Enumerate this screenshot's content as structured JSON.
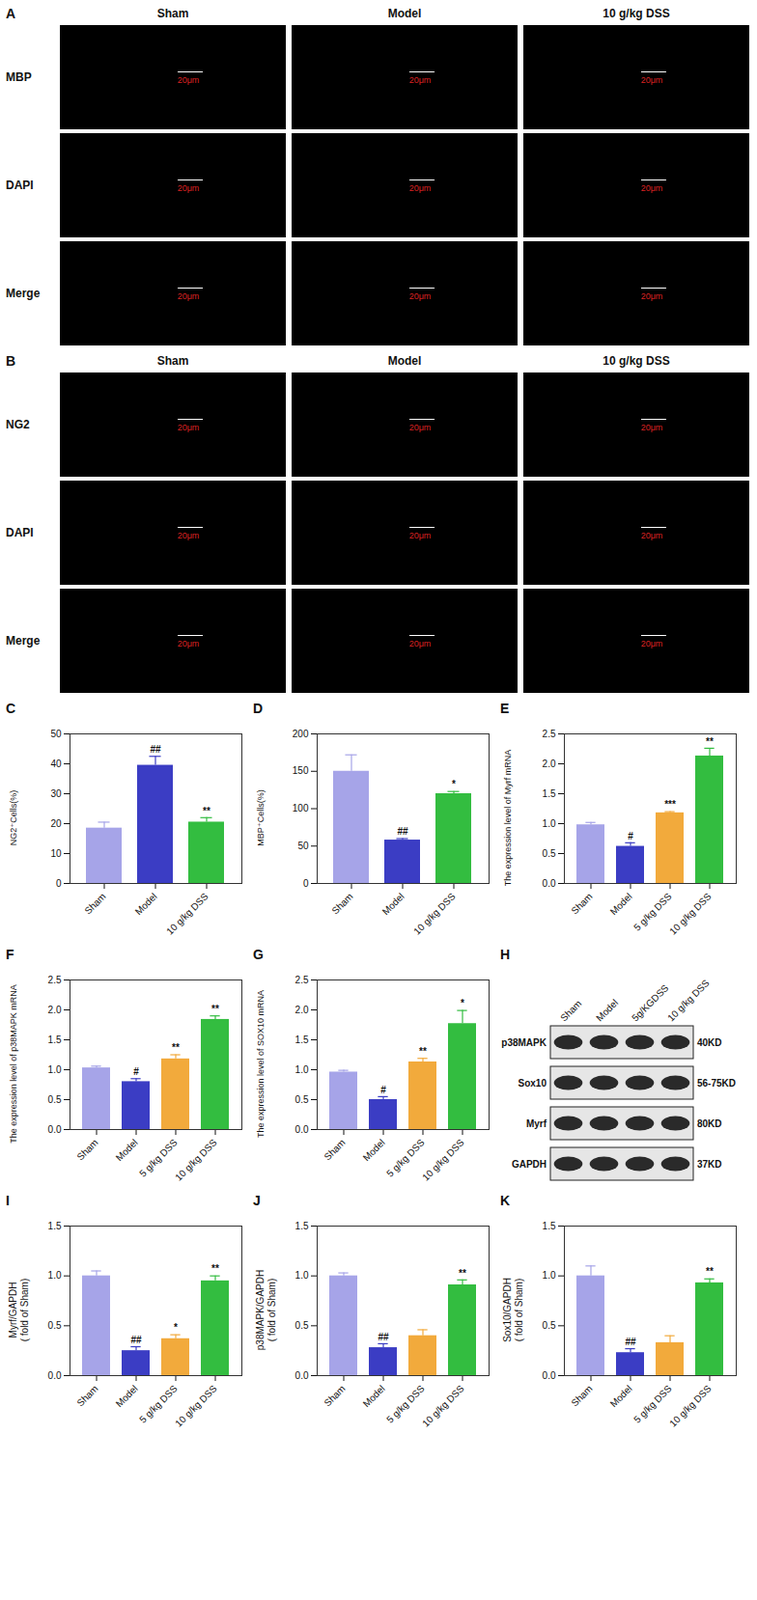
{
  "images": [
    {
      "panel": "A",
      "columns": [
        "Sham",
        "Model",
        "10 g/kg DSS"
      ],
      "rows": [
        "MBP",
        "DAPI",
        "Merge"
      ],
      "scale_bar": "20μm"
    },
    {
      "panel": "B",
      "columns": [
        "Sham",
        "Model",
        "10 g/kg DSS"
      ],
      "rows": [
        "NG2",
        "DAPI",
        "Merge"
      ],
      "scale_bar": "20μm"
    }
  ],
  "chart_data": [
    {
      "type": "bar",
      "panel": "C",
      "y_label": "NG2⁺Cells(%)",
      "categories": [
        "Sham",
        "Model",
        "10 g/kg DSS"
      ],
      "values": [
        18.5,
        39.5,
        20.5
      ],
      "errors": [
        2,
        3,
        1.5
      ],
      "annotations": [
        null,
        "##",
        "**"
      ],
      "colors": [
        "#a6a4e8",
        "#3b3dc4",
        "#33bd40"
      ],
      "ylim": [
        0,
        50
      ],
      "yticks": [
        0,
        10,
        20,
        30,
        40,
        50
      ]
    },
    {
      "type": "bar",
      "panel": "D",
      "y_label": "MBP⁺Cells(%)",
      "categories": [
        "Sham",
        "Model",
        "10 g/kg DSS"
      ],
      "values": [
        150,
        58,
        120
      ],
      "errors": [
        22,
        2,
        3
      ],
      "annotations": [
        null,
        "##",
        "*"
      ],
      "colors": [
        "#a6a4e8",
        "#3b3dc4",
        "#33bd40"
      ],
      "ylim": [
        0,
        200
      ],
      "yticks": [
        0,
        50,
        100,
        150,
        200
      ]
    },
    {
      "type": "bar",
      "panel": "E",
      "y_label": "The expression level of Myrf mRNA",
      "categories": [
        "Sham",
        "Model",
        "5 g/kg DSS",
        "10 g/kg DSS"
      ],
      "values": [
        0.98,
        0.62,
        1.18,
        2.13
      ],
      "errors": [
        0.04,
        0.06,
        0.02,
        0.13
      ],
      "annotations": [
        null,
        "#",
        "***",
        "**"
      ],
      "colors": [
        "#a6a4e8",
        "#3b3dc4",
        "#f2aa3c",
        "#33bd40"
      ],
      "ylim": [
        0,
        2.5
      ],
      "yticks": [
        {
          "value": 0,
          "label": "0.0"
        },
        0.5,
        {
          "value": 1,
          "label": "1.0"
        },
        1.5,
        {
          "value": 2,
          "label": "2.0"
        },
        2.5
      ]
    },
    {
      "type": "bar",
      "panel": "F",
      "y_label": "The expression level of p38MAPK mRNA",
      "categories": [
        "Sham",
        "Model",
        "5 g/kg DSS",
        "10 g/kg DSS"
      ],
      "values": [
        1.03,
        0.8,
        1.18,
        1.84
      ],
      "errors": [
        0.03,
        0.05,
        0.07,
        0.06
      ],
      "annotations": [
        null,
        "#",
        "**",
        "**"
      ],
      "colors": [
        "#a6a4e8",
        "#3b3dc4",
        "#f2aa3c",
        "#33bd40"
      ],
      "ylim": [
        0,
        2.5
      ],
      "yticks": [
        {
          "value": 0,
          "label": "0.0"
        },
        0.5,
        {
          "value": 1,
          "label": "1.0"
        },
        1.5,
        {
          "value": 2,
          "label": "2.0"
        },
        2.5
      ]
    },
    {
      "type": "bar",
      "panel": "G",
      "y_label": "The expression level of SOX10 mRNA",
      "categories": [
        "Sham",
        "Model",
        "5 g/kg DSS",
        "10 g/kg DSS"
      ],
      "values": [
        0.96,
        0.5,
        1.13,
        1.77
      ],
      "errors": [
        0.03,
        0.05,
        0.06,
        0.22
      ],
      "annotations": [
        null,
        "#",
        "**",
        "*"
      ],
      "colors": [
        "#a6a4e8",
        "#3b3dc4",
        "#f2aa3c",
        "#33bd40"
      ],
      "ylim": [
        0,
        2.5
      ],
      "yticks": [
        {
          "value": 0,
          "label": "0.0"
        },
        0.5,
        {
          "value": 1,
          "label": "1.0"
        },
        1.5,
        {
          "value": 2,
          "label": "2.0"
        },
        2.5
      ]
    },
    {
      "type": "blot",
      "panel": "H",
      "lanes": [
        "Sham",
        "Model",
        "5g/KGDSS",
        "10 g/kg DSS"
      ],
      "bands": [
        {
          "name": "p38MAPK",
          "size": "40KD"
        },
        {
          "name": "Sox10",
          "size": "56-75KD"
        },
        {
          "name": "Myrf",
          "size": "80KD"
        },
        {
          "name": "GAPDH",
          "size": "37KD"
        }
      ]
    },
    {
      "type": "bar",
      "panel": "I",
      "y_label": "Myrf/GAPDH\n( fold of Sham)",
      "categories": [
        "Sham",
        "Model",
        "5 g/kg DSS",
        "10 g/kg DSS"
      ],
      "values": [
        1.0,
        0.25,
        0.37,
        0.95
      ],
      "errors": [
        0.05,
        0.04,
        0.04,
        0.05
      ],
      "annotations": [
        null,
        "##",
        "*",
        "**"
      ],
      "colors": [
        "#a6a4e8",
        "#3b3dc4",
        "#f2aa3c",
        "#33bd40"
      ],
      "ylim": [
        0,
        1.5
      ],
      "yticks": [
        {
          "value": 0,
          "label": "0.0"
        },
        0.5,
        {
          "value": 1,
          "label": "1.0"
        },
        1.5
      ]
    },
    {
      "type": "bar",
      "panel": "J",
      "y_label": "p38MAPK/GAPDH\n( fold of Sham)",
      "categories": [
        "Sham",
        "Model",
        "5 g/kg DSS",
        "10 g/kg DSS"
      ],
      "values": [
        1.0,
        0.28,
        0.4,
        0.91
      ],
      "errors": [
        0.03,
        0.04,
        0.06,
        0.05
      ],
      "annotations": [
        null,
        "##",
        null,
        "**"
      ],
      "colors": [
        "#a6a4e8",
        "#3b3dc4",
        "#f2aa3c",
        "#33bd40"
      ],
      "ylim": [
        0,
        1.5
      ],
      "yticks": [
        {
          "value": 0,
          "label": "0.0"
        },
        0.5,
        {
          "value": 1,
          "label": "1.0"
        },
        1.5
      ]
    },
    {
      "type": "bar",
      "panel": "K",
      "y_label": "Sox10/GAPDH\n( fold of Sham)",
      "categories": [
        "Sham",
        "Model",
        "5 g/kg DSS",
        "10 g/kg DSS"
      ],
      "values": [
        1.0,
        0.23,
        0.33,
        0.93
      ],
      "errors": [
        0.1,
        0.04,
        0.07,
        0.04
      ],
      "annotations": [
        null,
        "##",
        null,
        "**"
      ],
      "colors": [
        "#a6a4e8",
        "#3b3dc4",
        "#f2aa3c",
        "#33bd40"
      ],
      "ylim": [
        0,
        1.5
      ],
      "yticks": [
        {
          "value": 0,
          "label": "0.0"
        },
        0.5,
        {
          "value": 1,
          "label": "1.0"
        },
        1.5
      ]
    }
  ]
}
